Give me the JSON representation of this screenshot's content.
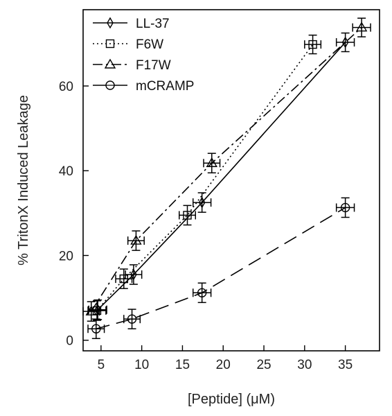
{
  "chart_data": {
    "type": "scatter",
    "xlabel": "[Peptide] (μM)",
    "ylabel": "% TritonX Induced Leakage",
    "xlim": [
      2.8,
      39.2
    ],
    "ylim": [
      -2.5,
      78
    ],
    "xticks": [
      5,
      10,
      15,
      20,
      25,
      30,
      35
    ],
    "yticks": [
      0,
      20,
      40,
      60
    ],
    "grid": false,
    "legend_position": "top-left",
    "series": [
      {
        "name": "LL-37",
        "line": "solid",
        "marker": "diamond",
        "x": [
          4.6,
          9.0,
          17.4,
          35.0
        ],
        "y": [
          7.2,
          15.5,
          32.5,
          70.3
        ],
        "xerr": [
          1.1,
          1.0,
          1.1,
          1.1
        ],
        "yerr": [
          2.3,
          2.3,
          2.3,
          2.2
        ]
      },
      {
        "name": "F6W",
        "line": "dotted",
        "marker": "square",
        "x": [
          4.5,
          7.8,
          15.6,
          31.0
        ],
        "y": [
          7.0,
          14.5,
          29.5,
          69.8
        ],
        "xerr": [
          1.1,
          1.0,
          1.0,
          1.0
        ],
        "yerr": [
          2.3,
          2.3,
          2.3,
          2.2
        ]
      },
      {
        "name": "F17W",
        "line": "dashdot",
        "marker": "triangle",
        "x": [
          3.8,
          9.3,
          18.6,
          37.0
        ],
        "y": [
          6.8,
          23.5,
          41.8,
          73.8
        ],
        "xerr": [
          1.0,
          1.0,
          1.0,
          1.1
        ],
        "yerr": [
          2.3,
          2.3,
          2.3,
          2.2
        ]
      },
      {
        "name": "mCRAMP",
        "line": "dashed",
        "marker": "circle",
        "x": [
          4.4,
          8.8,
          17.4,
          35.0
        ],
        "y": [
          2.7,
          5.0,
          11.2,
          31.3
        ],
        "xerr": [
          1.0,
          1.0,
          1.1,
          1.1
        ],
        "yerr": [
          2.3,
          2.3,
          2.3,
          2.3
        ]
      }
    ]
  }
}
